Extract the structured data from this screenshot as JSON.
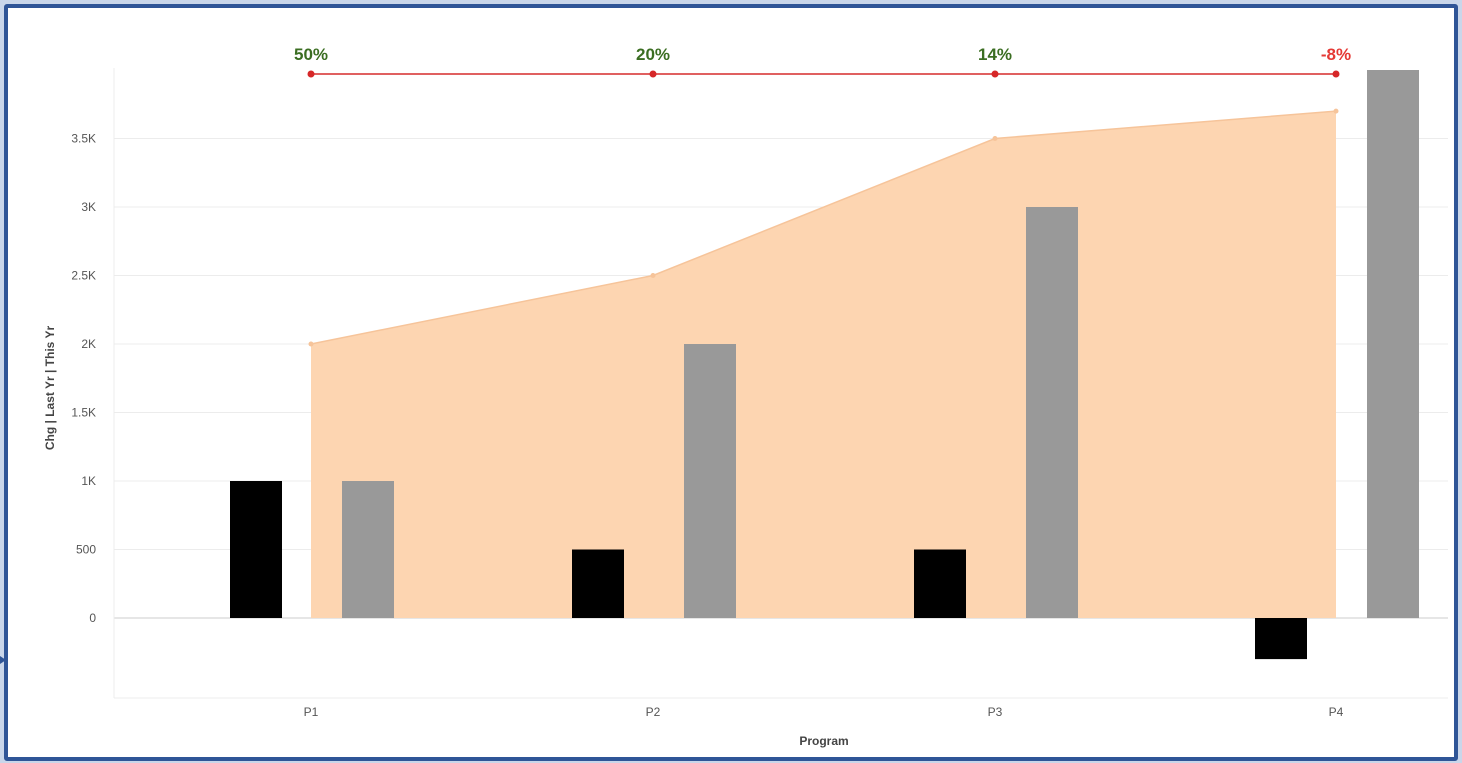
{
  "chart_data": {
    "type": "bar",
    "categories": [
      "P1",
      "P2",
      "P3",
      "P4"
    ],
    "xlabel": "Program",
    "ylabel": "Chg  |  Last Yr  |  This Yr",
    "ylim": [
      -600,
      4000
    ],
    "yticks": [
      0,
      500,
      1000,
      1500,
      2000,
      2500,
      3000,
      3500
    ],
    "ytick_labels": [
      "0",
      "500",
      "1K",
      "1.5K",
      "2K",
      "2.5K",
      "3K",
      "3.5K"
    ],
    "grid": true,
    "series": [
      {
        "key": "chg",
        "type": "bar",
        "values": [
          1000,
          500,
          500,
          -300
        ]
      },
      {
        "key": "last_year",
        "type": "bar",
        "values": [
          1000,
          2000,
          3000,
          4000
        ]
      },
      {
        "key": "this_year",
        "type": "area",
        "values": [
          2000,
          2500,
          3500,
          3700
        ]
      }
    ],
    "pct_change_labels": [
      "50%",
      "20%",
      "14%",
      "-8%"
    ],
    "colors": {
      "chg": "#000000",
      "last_year": "#999999",
      "this_year_fill": "#fdd5b1",
      "this_year_line": "#f6c49a",
      "pct_line": "#e06060",
      "pct_marker": "#d62728",
      "pct_positive": "#3b6e22",
      "pct_negative": "#e53935",
      "grid": "#ececec",
      "zero_line": "#cccccc"
    }
  }
}
